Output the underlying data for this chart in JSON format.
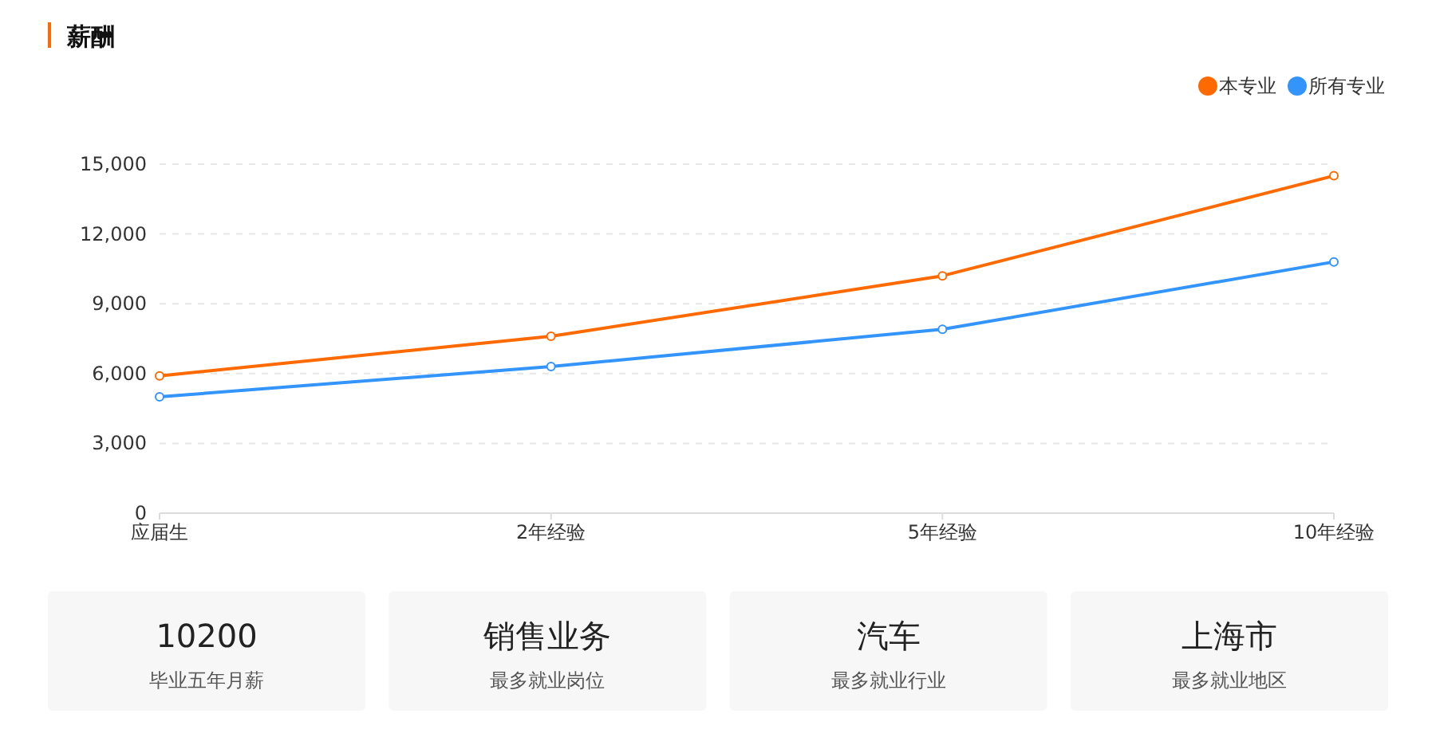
{
  "chart_data": [
    {
      "type": "line",
      "title": "薪酬",
      "categories": [
        "应届生",
        "2年经验",
        "5年经验",
        "10年经验"
      ],
      "series": [
        {
          "name": "本专业",
          "color": "#ff6a00",
          "values": [
            5900,
            7600,
            10200,
            14500
          ]
        },
        {
          "name": "所有专业",
          "color": "#3394fc",
          "values": [
            5000,
            6300,
            7900,
            10800
          ]
        }
      ],
      "ylim": [
        0,
        15000
      ],
      "yticks": [
        {
          "value": 0,
          "label": "0"
        },
        {
          "value": 3000,
          "label": "3,000"
        },
        {
          "value": 6000,
          "label": "6,000"
        },
        {
          "value": 9000,
          "label": "9,000"
        },
        {
          "value": 12000,
          "label": "12,000"
        },
        {
          "value": 15000,
          "label": "15,000"
        }
      ],
      "grid": "y",
      "legend": "top right",
      "marker": "circle"
    },
    {
      "type": "other",
      "annotations": [
        "10200",
        "毕业五年月薪",
        "销售业务",
        "最多就业岗位",
        "汽车",
        "最多就业行业",
        "上海市",
        "最多就业地区"
      ]
    }
  ]
}
